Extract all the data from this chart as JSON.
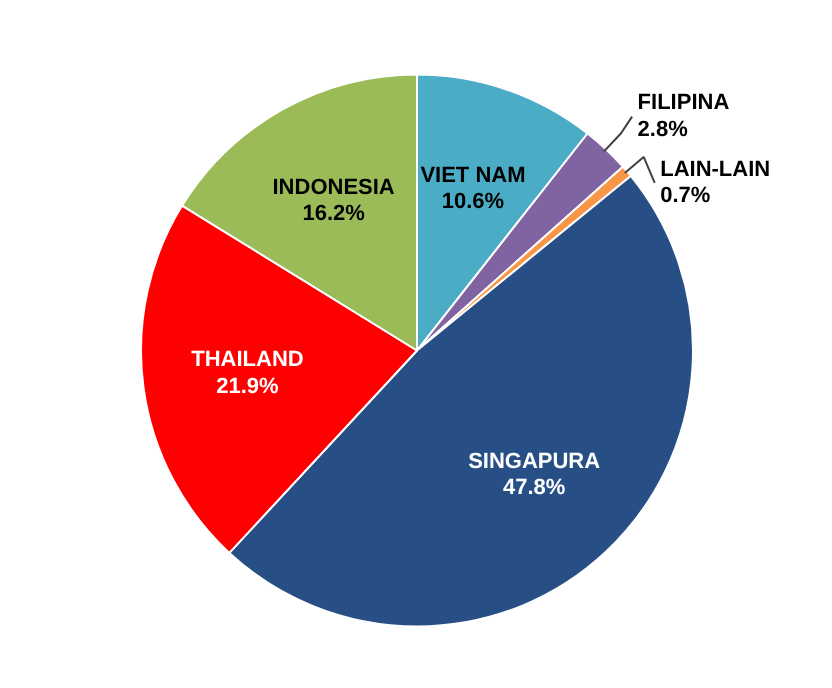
{
  "chart_data": {
    "type": "pie",
    "categories": [
      "VIET NAM",
      "FILIPINA",
      "LAIN-LAIN",
      "SINGAPURA",
      "THAILAND",
      "INDONESIA"
    ],
    "values": [
      10.6,
      2.8,
      0.7,
      47.8,
      21.9,
      16.2
    ],
    "value_labels": [
      "10.6%",
      "2.8%",
      "0.7%",
      "47.8%",
      "21.9%",
      "16.2%"
    ],
    "colors": [
      "#4bacc6",
      "#8064a2",
      "#f79646",
      "#274f85",
      "#ff0000",
      "#9bbb59"
    ],
    "legend": false
  }
}
